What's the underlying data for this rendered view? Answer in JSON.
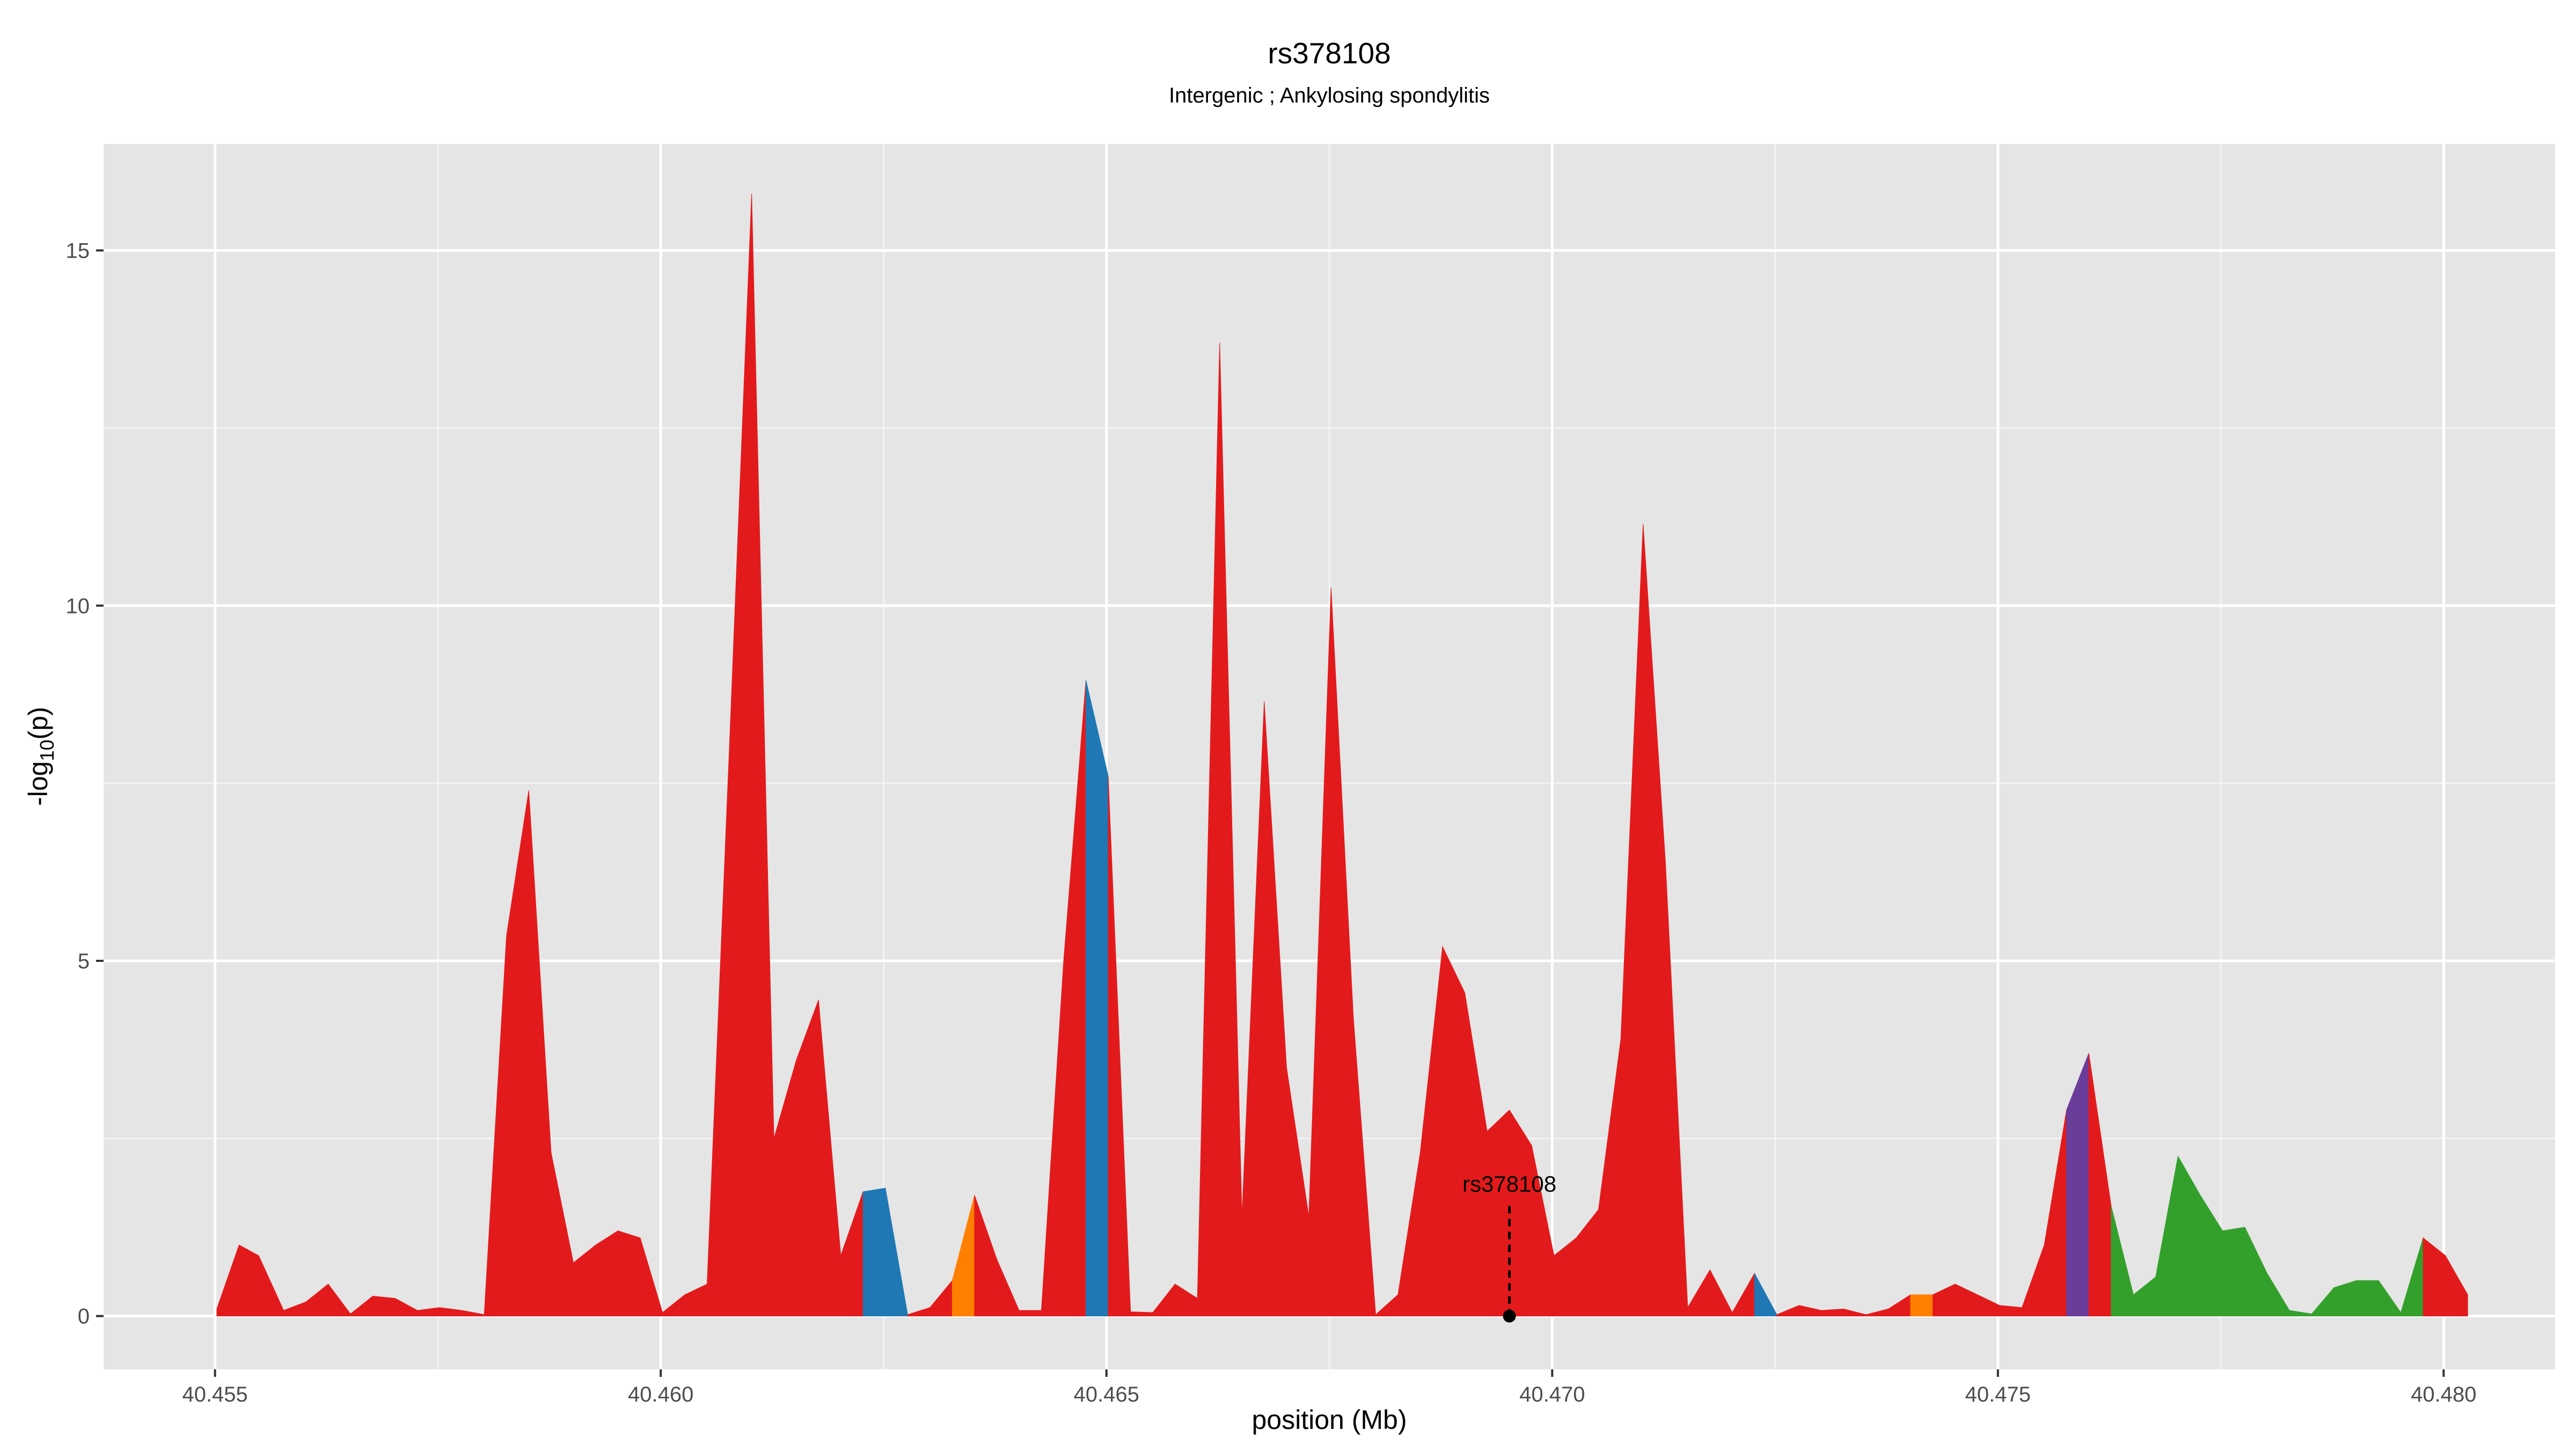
{
  "chart_data": {
    "type": "area",
    "title": "rs378108",
    "subtitle": "Intergenic ; Ankylosing spondylitis",
    "xlabel": "position (Mb)",
    "ylabel": "-log10(p)",
    "ylabel_prefix": "-log",
    "ylabel_sub": "10",
    "ylabel_suffix": "(p)",
    "xlim": [
      40.45375,
      40.48125
    ],
    "ylim": [
      -0.75,
      16.5
    ],
    "x_ticks": [
      40.455,
      40.46,
      40.465,
      40.47,
      40.475,
      40.48
    ],
    "x_tick_labels": [
      "40.455",
      "40.460",
      "40.465",
      "40.470",
      "40.475",
      "40.480"
    ],
    "y_ticks": [
      0,
      5,
      10,
      15
    ],
    "y_tick_labels": [
      "0",
      "5",
      "10",
      "15"
    ],
    "grid": true,
    "colors": {
      "red": "#E31A1C",
      "blue": "#1F78B4",
      "orange": "#FF7F00",
      "purple": "#6A3D9A",
      "green": "#33A02C",
      "panel": "#E5E5E5",
      "grid": "#FFFFFF",
      "axis_text": "#4D4D4D"
    },
    "points": [
      [
        40.45502,
        0.1
      ],
      [
        40.45527,
        1.0
      ],
      [
        40.45549,
        0.85
      ],
      [
        40.45577,
        0.08
      ],
      [
        40.45602,
        0.2
      ],
      [
        40.45627,
        0.45
      ],
      [
        40.45652,
        0.03
      ],
      [
        40.45677,
        0.28
      ],
      [
        40.45702,
        0.25
      ],
      [
        40.45727,
        0.08
      ],
      [
        40.45752,
        0.12
      ],
      [
        40.45777,
        0.08
      ],
      [
        40.45802,
        0.02
      ],
      [
        40.45827,
        5.35
      ],
      [
        40.45852,
        7.4
      ],
      [
        40.45877,
        2.3
      ],
      [
        40.45902,
        0.75
      ],
      [
        40.45927,
        1.0
      ],
      [
        40.45952,
        1.2
      ],
      [
        40.45977,
        1.1
      ],
      [
        40.46002,
        0.05
      ],
      [
        40.46027,
        0.3
      ],
      [
        40.46052,
        0.45
      ],
      [
        40.46077,
        8.0
      ],
      [
        40.46102,
        15.8
      ],
      [
        40.46127,
        2.5
      ],
      [
        40.46152,
        3.6
      ],
      [
        40.46177,
        4.45
      ],
      [
        40.46202,
        0.85
      ],
      [
        40.46227,
        1.75
      ],
      [
        40.46252,
        1.8
      ],
      [
        40.46277,
        0.02
      ],
      [
        40.46302,
        0.12
      ],
      [
        40.46327,
        0.5
      ],
      [
        40.46352,
        1.7
      ],
      [
        40.46377,
        0.8
      ],
      [
        40.46402,
        0.08
      ],
      [
        40.46427,
        0.08
      ],
      [
        40.46452,
        5.0
      ],
      [
        40.46477,
        8.95
      ],
      [
        40.46502,
        7.6
      ],
      [
        40.46527,
        0.06
      ],
      [
        40.46552,
        0.05
      ],
      [
        40.46577,
        0.45
      ],
      [
        40.46602,
        0.25
      ],
      [
        40.46627,
        13.7
      ],
      [
        40.46652,
        1.4
      ],
      [
        40.46677,
        8.65
      ],
      [
        40.46702,
        3.5
      ],
      [
        40.46727,
        1.4
      ],
      [
        40.46752,
        10.25
      ],
      [
        40.46777,
        4.2
      ],
      [
        40.46802,
        0.02
      ],
      [
        40.46827,
        0.3
      ],
      [
        40.46852,
        2.3
      ],
      [
        40.46877,
        5.2
      ],
      [
        40.46902,
        4.55
      ],
      [
        40.46927,
        2.6
      ],
      [
        40.46952,
        2.9
      ],
      [
        40.46977,
        2.4
      ],
      [
        40.47002,
        0.85
      ],
      [
        40.47027,
        1.1
      ],
      [
        40.47052,
        1.5
      ],
      [
        40.47077,
        3.9
      ],
      [
        40.47102,
        11.15
      ],
      [
        40.47127,
        6.4
      ],
      [
        40.47152,
        0.12
      ],
      [
        40.47177,
        0.65
      ],
      [
        40.47202,
        0.05
      ],
      [
        40.47227,
        0.6
      ],
      [
        40.47252,
        0.02
      ],
      [
        40.47277,
        0.15
      ],
      [
        40.47302,
        0.08
      ],
      [
        40.47327,
        0.1
      ],
      [
        40.47352,
        0.02
      ],
      [
        40.47377,
        0.1
      ],
      [
        40.47402,
        0.3
      ],
      [
        40.47427,
        0.3
      ],
      [
        40.47452,
        0.45
      ],
      [
        40.47477,
        0.3
      ],
      [
        40.47502,
        0.15
      ],
      [
        40.47527,
        0.12
      ],
      [
        40.47552,
        1.0
      ],
      [
        40.47577,
        2.9
      ],
      [
        40.47602,
        3.7
      ],
      [
        40.47627,
        1.55
      ],
      [
        40.47652,
        0.3
      ],
      [
        40.47677,
        0.55
      ],
      [
        40.47702,
        2.25
      ],
      [
        40.47727,
        1.7
      ],
      [
        40.47752,
        1.2
      ],
      [
        40.47777,
        1.25
      ],
      [
        40.47802,
        0.6
      ],
      [
        40.47827,
        0.08
      ],
      [
        40.47852,
        0.03
      ],
      [
        40.47877,
        0.4
      ],
      [
        40.47902,
        0.5
      ],
      [
        40.47927,
        0.5
      ],
      [
        40.47952,
        0.05
      ],
      [
        40.47977,
        1.1
      ],
      [
        40.48002,
        0.85
      ],
      [
        40.48027,
        0.3
      ]
    ],
    "color_segments": [
      {
        "from": 40.45502,
        "to": 40.46227,
        "color": "red"
      },
      {
        "from": 40.46227,
        "to": 40.46277,
        "color": "blue"
      },
      {
        "from": 40.46277,
        "to": 40.46327,
        "color": "red"
      },
      {
        "from": 40.46327,
        "to": 40.46352,
        "color": "orange"
      },
      {
        "from": 40.46352,
        "to": 40.46477,
        "color": "red"
      },
      {
        "from": 40.46477,
        "to": 40.46502,
        "color": "blue"
      },
      {
        "from": 40.46502,
        "to": 40.47227,
        "color": "red"
      },
      {
        "from": 40.47227,
        "to": 40.47252,
        "color": "blue"
      },
      {
        "from": 40.47252,
        "to": 40.47402,
        "color": "red"
      },
      {
        "from": 40.47402,
        "to": 40.47427,
        "color": "orange"
      },
      {
        "from": 40.47427,
        "to": 40.47577,
        "color": "red"
      },
      {
        "from": 40.47577,
        "to": 40.47602,
        "color": "purple"
      },
      {
        "from": 40.47602,
        "to": 40.47627,
        "color": "red"
      },
      {
        "from": 40.47627,
        "to": 40.47977,
        "color": "green"
      },
      {
        "from": 40.47977,
        "to": 40.48027,
        "color": "red"
      }
    ],
    "annotation": {
      "label": "rs378108",
      "x": 40.46952,
      "y": 0
    }
  }
}
